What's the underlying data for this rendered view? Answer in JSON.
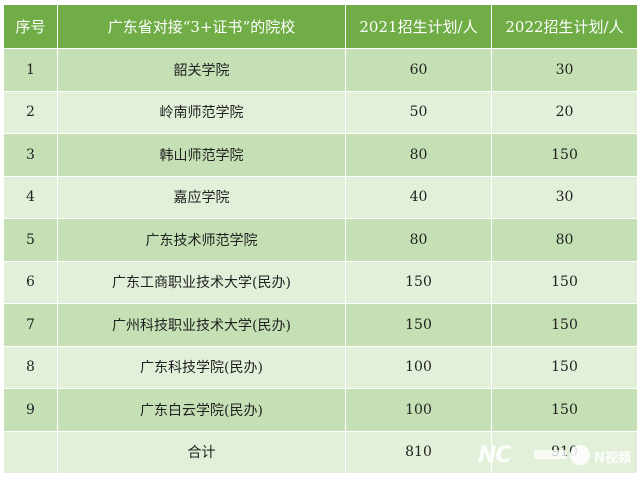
{
  "table": {
    "headers": [
      "序号",
      "广东省对接“3+证书”的院校",
      "2021招生计划/人",
      "2022招生计划/人"
    ],
    "rows": [
      [
        "1",
        "韶关学院",
        "60",
        "30"
      ],
      [
        "2",
        "岭南师范学院",
        "50",
        "20"
      ],
      [
        "3",
        "韩山师范学院",
        "80",
        "150"
      ],
      [
        "4",
        "嘉应学院",
        "40",
        "30"
      ],
      [
        "5",
        "广东技术师范学院",
        "80",
        "80"
      ],
      [
        "6",
        "广东工商职业技术大学(民办)",
        "150",
        "150"
      ],
      [
        "7",
        "广州科技职业技术大学(民办)",
        "150",
        "150"
      ],
      [
        "8",
        "广东科技学院(民办)",
        "100",
        "150"
      ],
      [
        "9",
        "广东白云学院(民办)",
        "100",
        "150"
      ],
      [
        "",
        "合计",
        "810",
        "910"
      ]
    ]
  },
  "watermark": {
    "logo": "NC",
    "text": "N视频",
    "icon": "n-video-icon"
  },
  "colors": {
    "header": "#70ad47",
    "row_odd": "#c5e0b4",
    "row_even": "#e2f0d9"
  }
}
